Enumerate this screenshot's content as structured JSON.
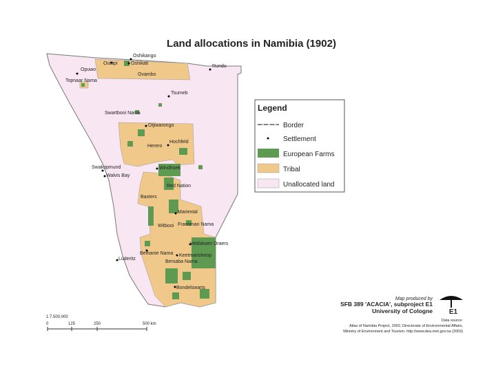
{
  "title": "Land allocations in Namibia (1902)",
  "places": [
    "Oshikango",
    "Outapi",
    "Oshikati",
    "Ovambo",
    "Opuwo",
    "Rundu",
    "Topnaar Nama",
    "Tsumeb",
    "Swartbooi Nama",
    "Otjiwarongo",
    "Hochfeld",
    "Herero",
    "Swakopmund",
    "Walvis Bay",
    "Windhoek",
    "Red Nation",
    "Basters",
    "Mariental",
    "Witbooi",
    "Fransman Nama",
    "Veldskoen Draers",
    "Keetmanshoop",
    "Bethanie Nama",
    "Bersaba Nama",
    "Lüderitz",
    "Bondelswarts"
  ],
  "legend": {
    "title": "Legend",
    "items": [
      "Border",
      "Settlement",
      "European Farms",
      "Tribal",
      "Unallocated land"
    ]
  },
  "scale_bar": {
    "ratio": "1:7.500.000",
    "labels": [
      "0",
      "125",
      "250",
      "500 km"
    ]
  },
  "credits": {
    "produced": "Map produced by",
    "project": "SFB 389 'ACACIA', subproject E1",
    "university": "University of Cologne",
    "logo": "E1",
    "source_title": "Data source:",
    "source_lines": [
      "Atlas of Namibia Project, 2002, Directorate of Environmental Affairs,",
      "Ministry of Environment and Tourism. http://www.dea.met.gov.na (2003)"
    ]
  }
}
